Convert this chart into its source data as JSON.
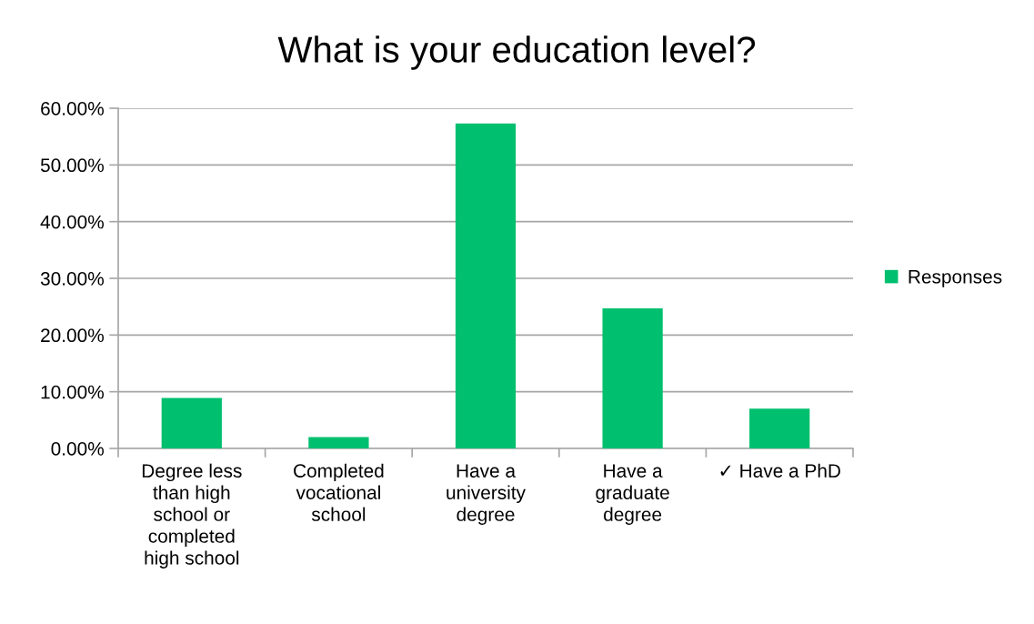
{
  "chart_data": {
    "type": "bar",
    "title": "What is your education level?",
    "categories": [
      "Degree less than high school or completed high school",
      "Completed vocational school",
      "Have a university degree",
      "Have a graduate degree",
      "✓ Have a PhD"
    ],
    "series": [
      {
        "name": "Responses",
        "color": "#00bf6f",
        "values": [
          8.9,
          2.0,
          57.3,
          24.7,
          7.0
        ]
      }
    ],
    "ylim": [
      0,
      60
    ],
    "yticks": [
      {
        "value": 0,
        "label": "0.00%"
      },
      {
        "value": 10,
        "label": "10.00%"
      },
      {
        "value": 20,
        "label": "20.00%"
      },
      {
        "value": 30,
        "label": "30.00%"
      },
      {
        "value": 40,
        "label": "40.00%"
      },
      {
        "value": 50,
        "label": "50.00%"
      },
      {
        "value": 60,
        "label": "60.00%"
      }
    ],
    "grid": "y",
    "legend": "right"
  }
}
